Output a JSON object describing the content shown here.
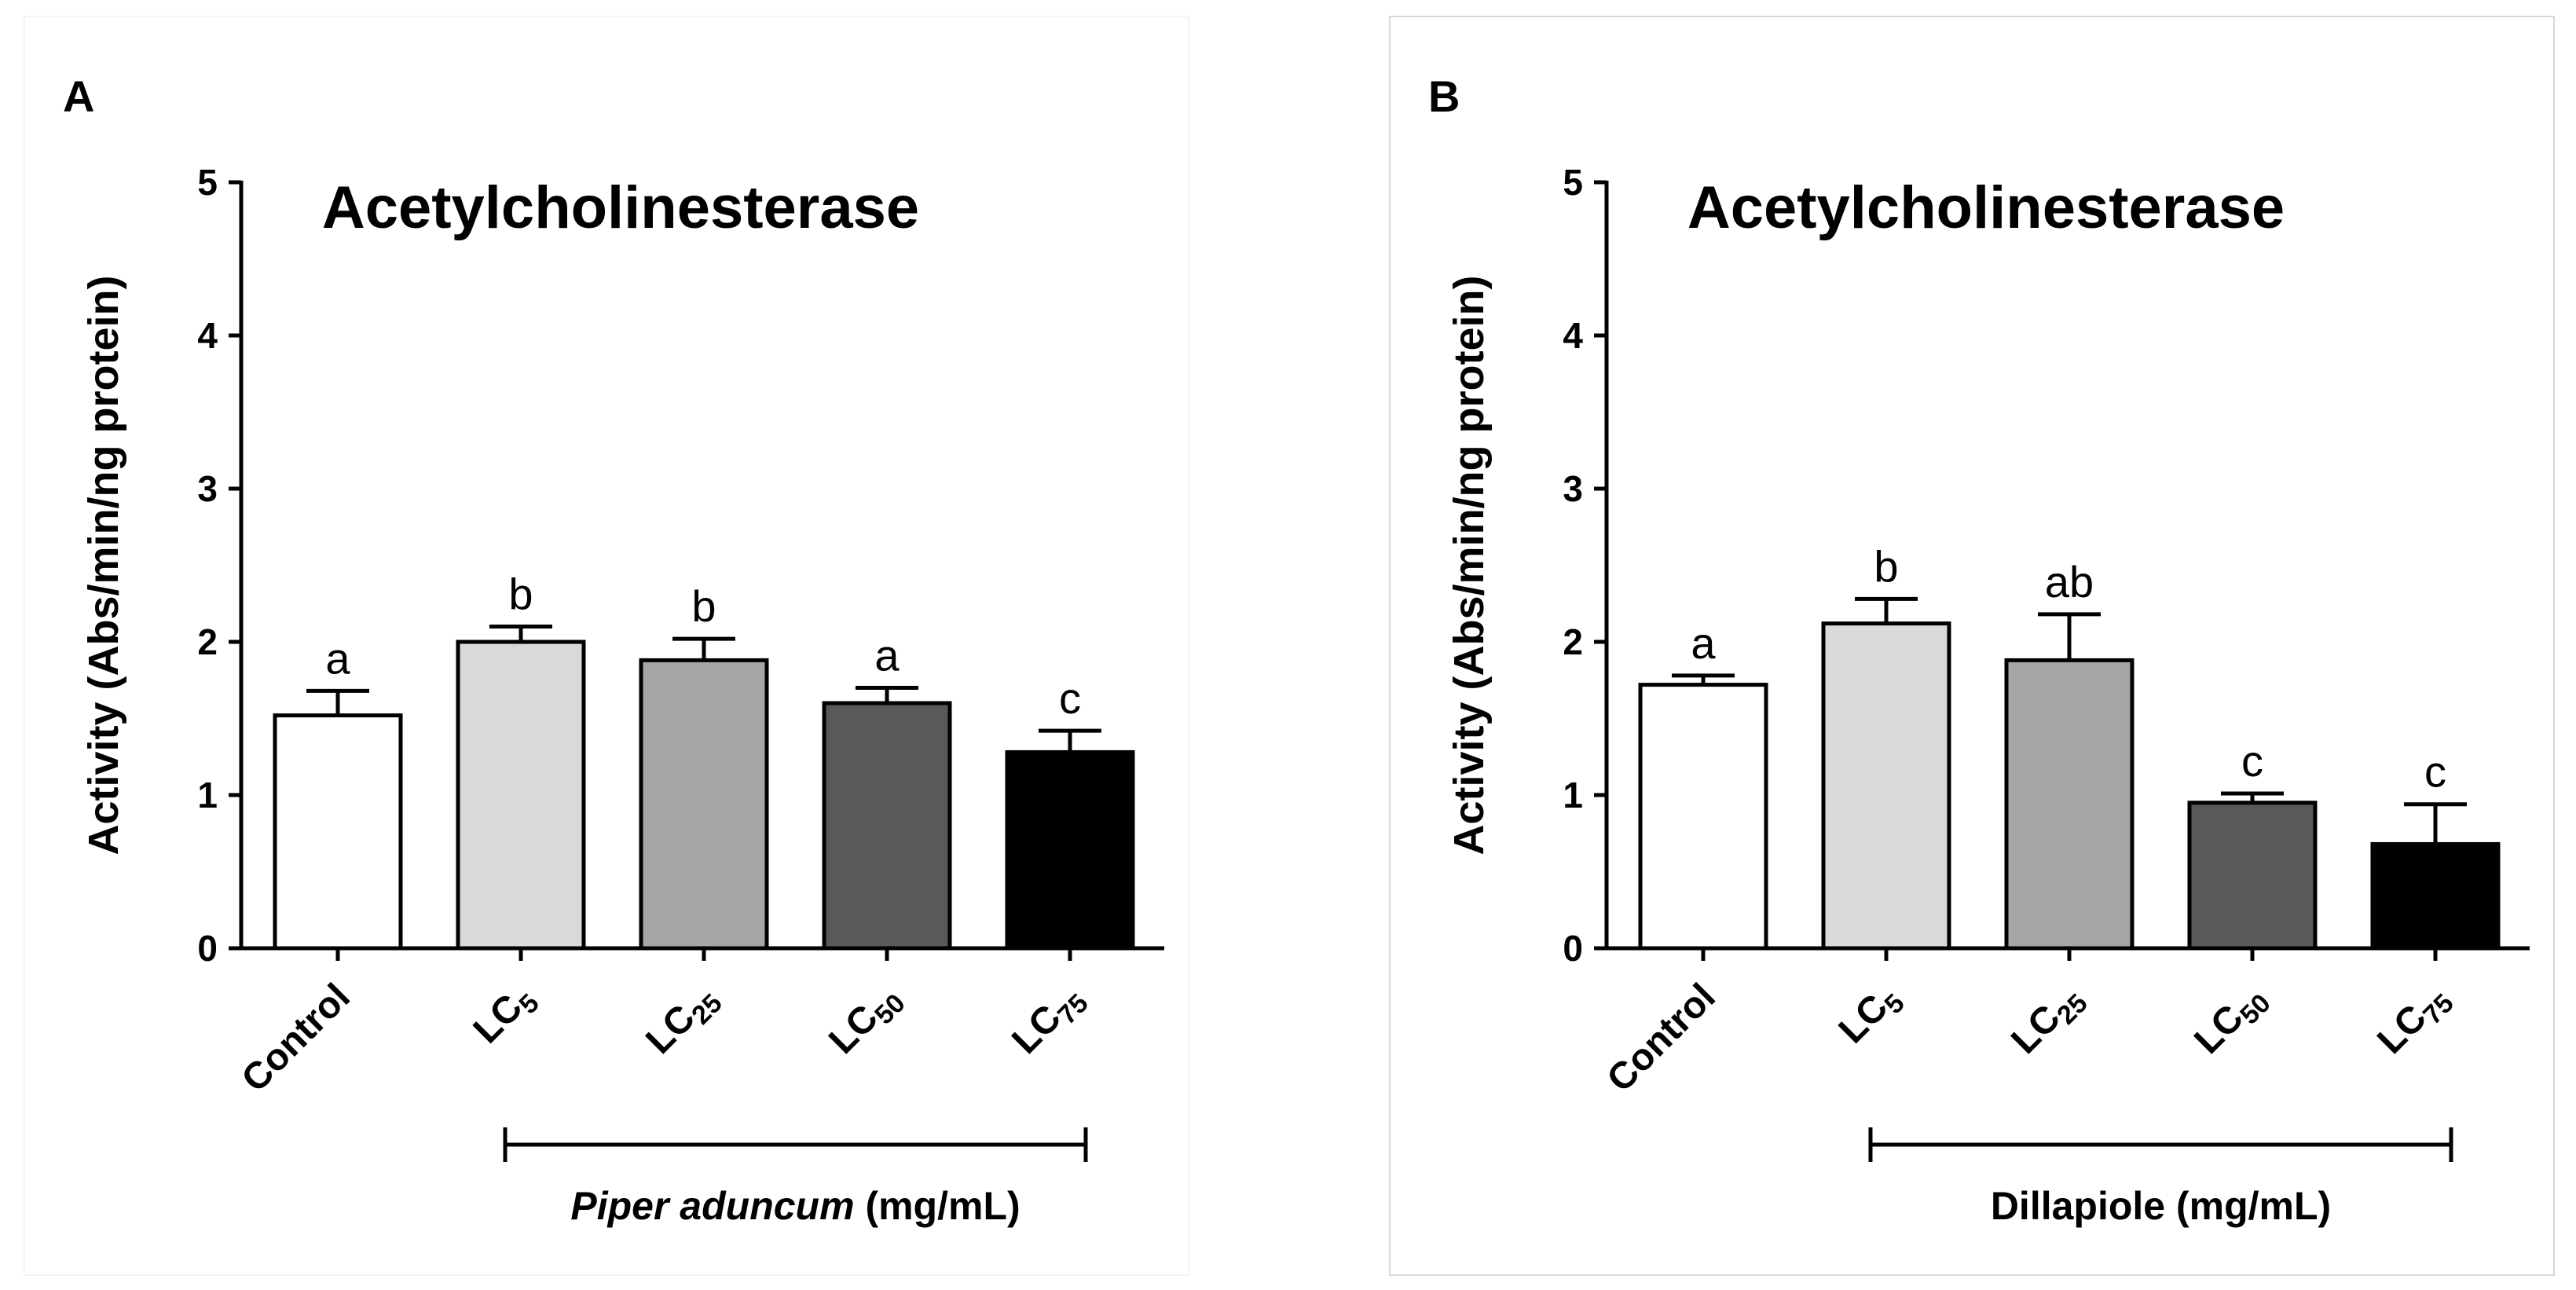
{
  "chart_data": [
    {
      "type": "bar",
      "panel": "A",
      "title": "Acetylcholinesterase",
      "ylabel": "Activity (Abs/min/ng protein)",
      "xlabel": "",
      "ylim": [
        0,
        5
      ],
      "yticks": [
        "0",
        "1",
        "2",
        "3",
        "4",
        "5"
      ],
      "categories": [
        {
          "base": "Control",
          "sub": ""
        },
        {
          "base": "LC",
          "sub": "5"
        },
        {
          "base": "LC",
          "sub": "25"
        },
        {
          "base": "LC",
          "sub": "50"
        },
        {
          "base": "LC",
          "sub": "75"
        }
      ],
      "values": [
        1.52,
        2.0,
        1.88,
        1.6,
        1.28
      ],
      "errors": [
        0.16,
        0.1,
        0.14,
        0.1,
        0.14
      ],
      "letters": [
        "a",
        "b",
        "b",
        "a",
        "c"
      ],
      "colors": [
        "#ffffff",
        "#d9d9d9",
        "#a6a6a6",
        "#595959",
        "#000000"
      ],
      "group_label_italic": "Piper aduncum",
      "group_label_rest": " (mg/mL)"
    },
    {
      "type": "bar",
      "panel": "B",
      "title": "Acetylcholinesterase",
      "ylabel": "Activity (Abs/min/ng protein)",
      "xlabel": "",
      "ylim": [
        0,
        5
      ],
      "yticks": [
        "0",
        "1",
        "2",
        "3",
        "4",
        "5"
      ],
      "categories": [
        {
          "base": "Control",
          "sub": ""
        },
        {
          "base": "LC",
          "sub": "5"
        },
        {
          "base": "LC",
          "sub": "25"
        },
        {
          "base": "LC",
          "sub": "50"
        },
        {
          "base": "LC",
          "sub": "75"
        }
      ],
      "values": [
        1.72,
        2.12,
        1.88,
        0.95,
        0.68
      ],
      "errors": [
        0.06,
        0.16,
        0.3,
        0.06,
        0.26
      ],
      "letters": [
        "a",
        "b",
        "ab",
        "c",
        "c"
      ],
      "colors": [
        "#ffffff",
        "#d9d9d9",
        "#a6a6a6",
        "#595959",
        "#000000"
      ],
      "group_label_italic": "",
      "group_label_rest": "Dillapiole (mg/mL)"
    }
  ]
}
